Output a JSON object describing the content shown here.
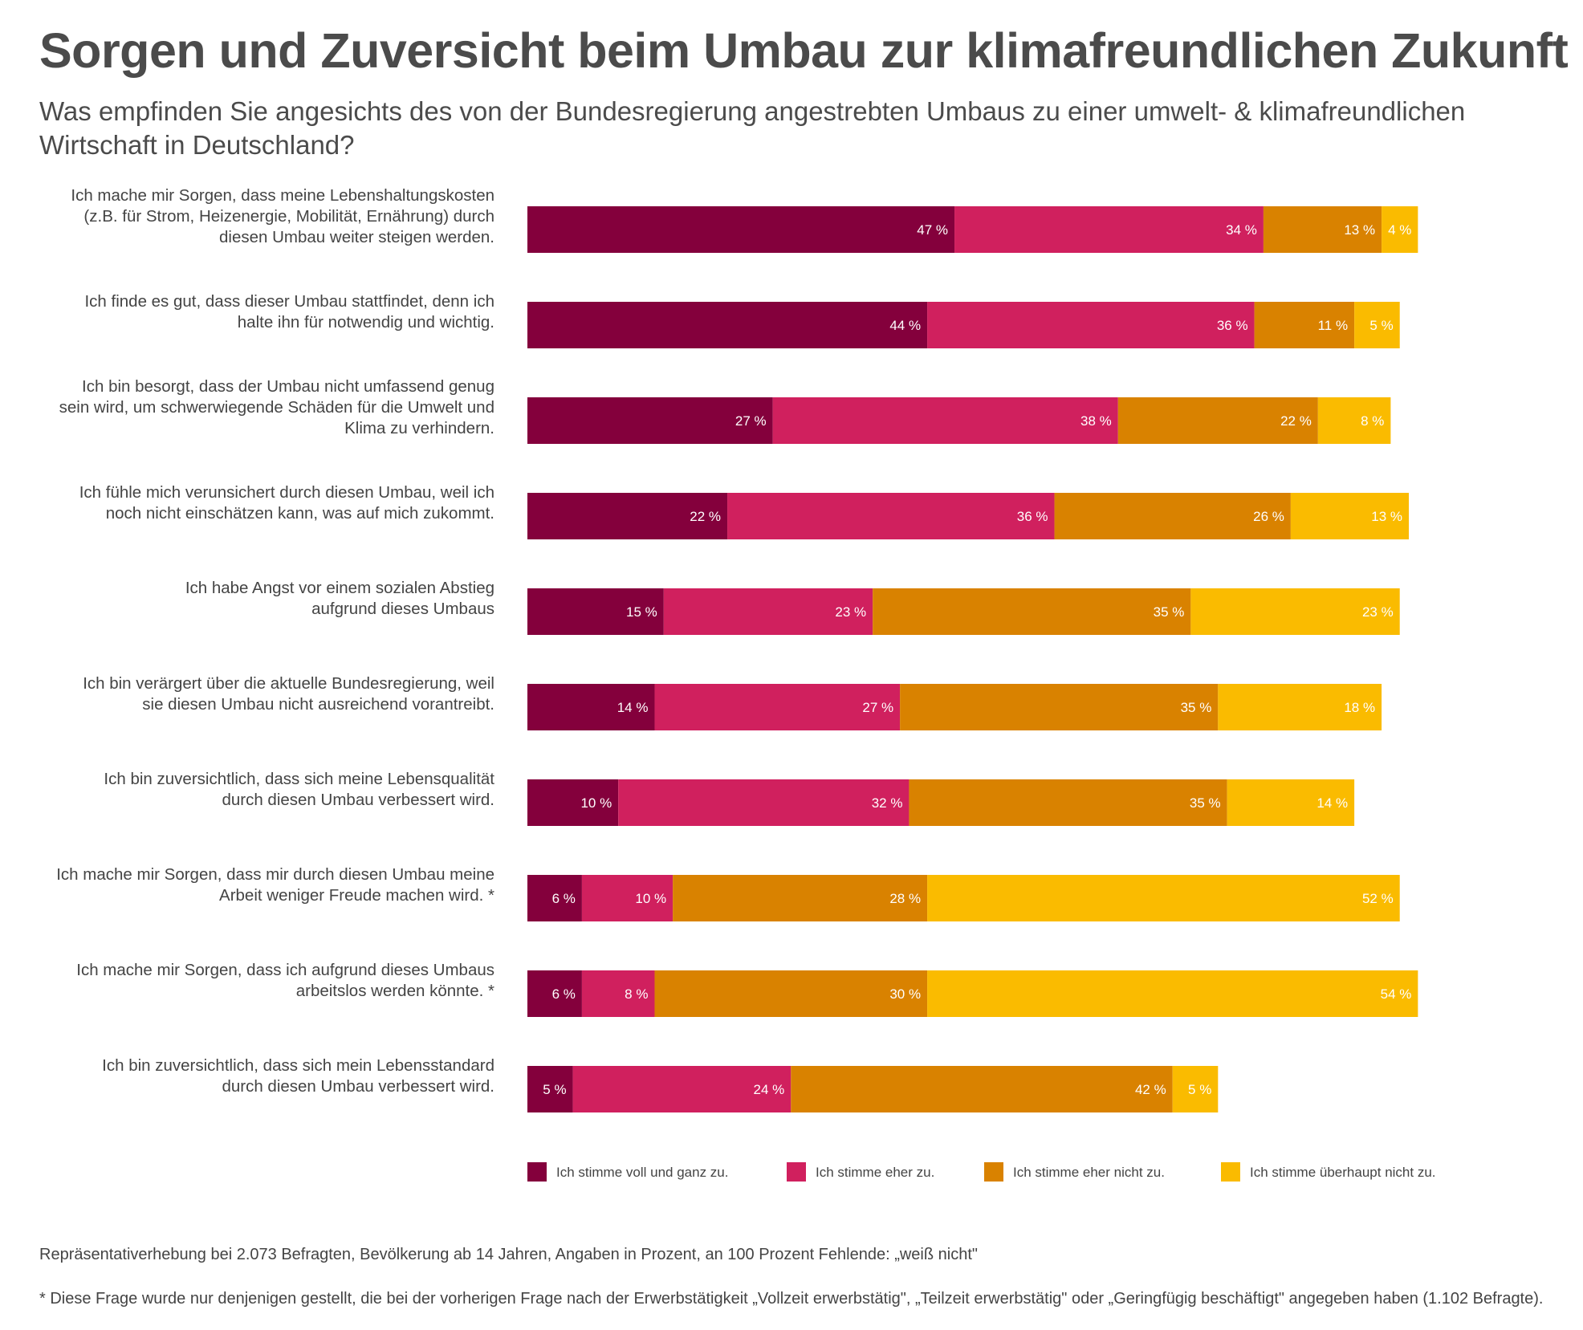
{
  "title": "Sorgen und Zuversicht beim Umbau zur klimafreundlichen Zukunft",
  "subtitle": "Was empfinden Sie angesichts des von der Bundesregierung angestrebten Umbaus zu einer umwelt- & klimafreundlichen Wirtschaft in Deutschland?",
  "footnotes": {
    "method": "Repräsentativerhebung bei 2.073 Befragten, Bevölkerung ab 14 Jahren, Angaben in Prozent, an 100 Prozent Fehlende: „weiß nicht\"",
    "asterisk": "* Diese Frage wurde nur denjenigen gestellt, die bei der vorherigen Frage nach der Erwerbstätigkeit „Vollzeit erwerbstätig\", „Teilzeit erwerbstätig\" oder „Geringfügig beschäftigt\" angegeben haben (1.102 Befragte)."
  },
  "chart_data": {
    "type": "bar",
    "orientation": "horizontal",
    "stacked": true,
    "xlim": [
      0,
      100
    ],
    "unit": "%",
    "grid": false,
    "legend_position": "bottom",
    "categories": [
      [
        "Ich mache mir Sorgen, dass meine Lebenshaltungskosten",
        "(z.B. für Strom, Heizenergie, Mobilität, Ernährung) durch",
        "diesen Umbau weiter steigen werden."
      ],
      [
        "Ich finde es gut, dass dieser Umbau stattfindet, denn ich",
        "halte ihn für notwendig und wichtig."
      ],
      [
        "Ich bin besorgt, dass der Umbau nicht umfassend genug",
        "sein wird, um schwerwiegende Schäden für die Umwelt und",
        "Klima zu verhindern."
      ],
      [
        "Ich fühle mich verunsichert durch diesen Umbau, weil ich",
        "noch nicht einschätzen kann, was auf mich zukommt."
      ],
      [
        "Ich habe Angst vor einem sozialen Abstieg",
        "aufgrund dieses Umbaus"
      ],
      [
        "Ich bin verärgert über die aktuelle Bundesregierung, weil",
        "sie diesen Umbau nicht ausreichend vorantreibt."
      ],
      [
        "Ich bin zuversichtlich, dass sich meine Lebensqualität",
        "durch diesen Umbau verbessert wird."
      ],
      [
        "Ich mache mir Sorgen, dass mir durch diesen Umbau meine",
        "Arbeit weniger Freude machen wird. *"
      ],
      [
        "Ich mache mir Sorgen, dass ich aufgrund dieses Umbaus",
        "arbeitslos werden könnte. *"
      ],
      [
        "Ich bin zuversichtlich, dass sich mein Lebensstandard",
        "durch diesen Umbau verbessert wird."
      ]
    ],
    "series": [
      {
        "name": "Ich stimme voll und ganz zu.",
        "color": "#84003c",
        "values": [
          47,
          44,
          27,
          22,
          15,
          14,
          10,
          6,
          6,
          5
        ]
      },
      {
        "name": "Ich stimme eher zu.",
        "color": "#d0205e",
        "values": [
          34,
          36,
          38,
          36,
          23,
          27,
          32,
          10,
          8,
          24
        ]
      },
      {
        "name": "Ich stimme eher nicht  zu.",
        "color": "#d98200",
        "values": [
          13,
          11,
          22,
          26,
          35,
          35,
          35,
          28,
          30,
          42
        ]
      },
      {
        "name": "Ich stimme überhaupt nicht zu.",
        "color": "#fabb00",
        "values": [
          4,
          5,
          8,
          13,
          23,
          18,
          14,
          52,
          54,
          5
        ]
      }
    ]
  }
}
